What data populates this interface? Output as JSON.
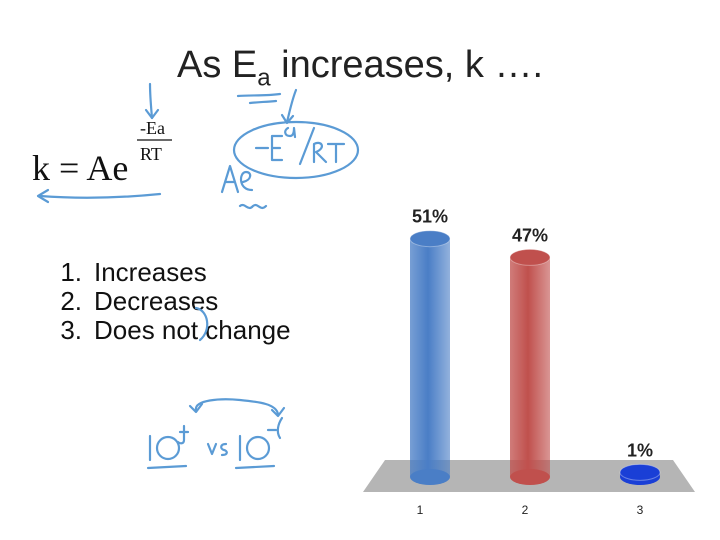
{
  "slide": {
    "title_main": "As E",
    "title_sub": "a",
    "title_rest": " increases, k  ….",
    "formula": {
      "lhs": "k = Ae",
      "exp_top": "-Ea",
      "exp_bottom": "RT"
    },
    "options": [
      {
        "num": "1.",
        "label": "Increases"
      },
      {
        "num": "2.",
        "label": "Decreases"
      },
      {
        "num": "3.",
        "label": "Does not change"
      }
    ]
  },
  "chart_data": {
    "type": "bar",
    "categories": [
      "1",
      "2",
      "3"
    ],
    "values": [
      51,
      47,
      1
    ],
    "value_labels": [
      "51%",
      "47%",
      "1%"
    ],
    "ylim": [
      0,
      55
    ],
    "grid": false,
    "legend": "none",
    "colors": [
      "#4a7ec6",
      "#c0504d",
      "#1a3fd6"
    ]
  },
  "colors": {
    "ink": "#5b9bd5",
    "text": "#222222",
    "floor": "#b5b5b5"
  }
}
